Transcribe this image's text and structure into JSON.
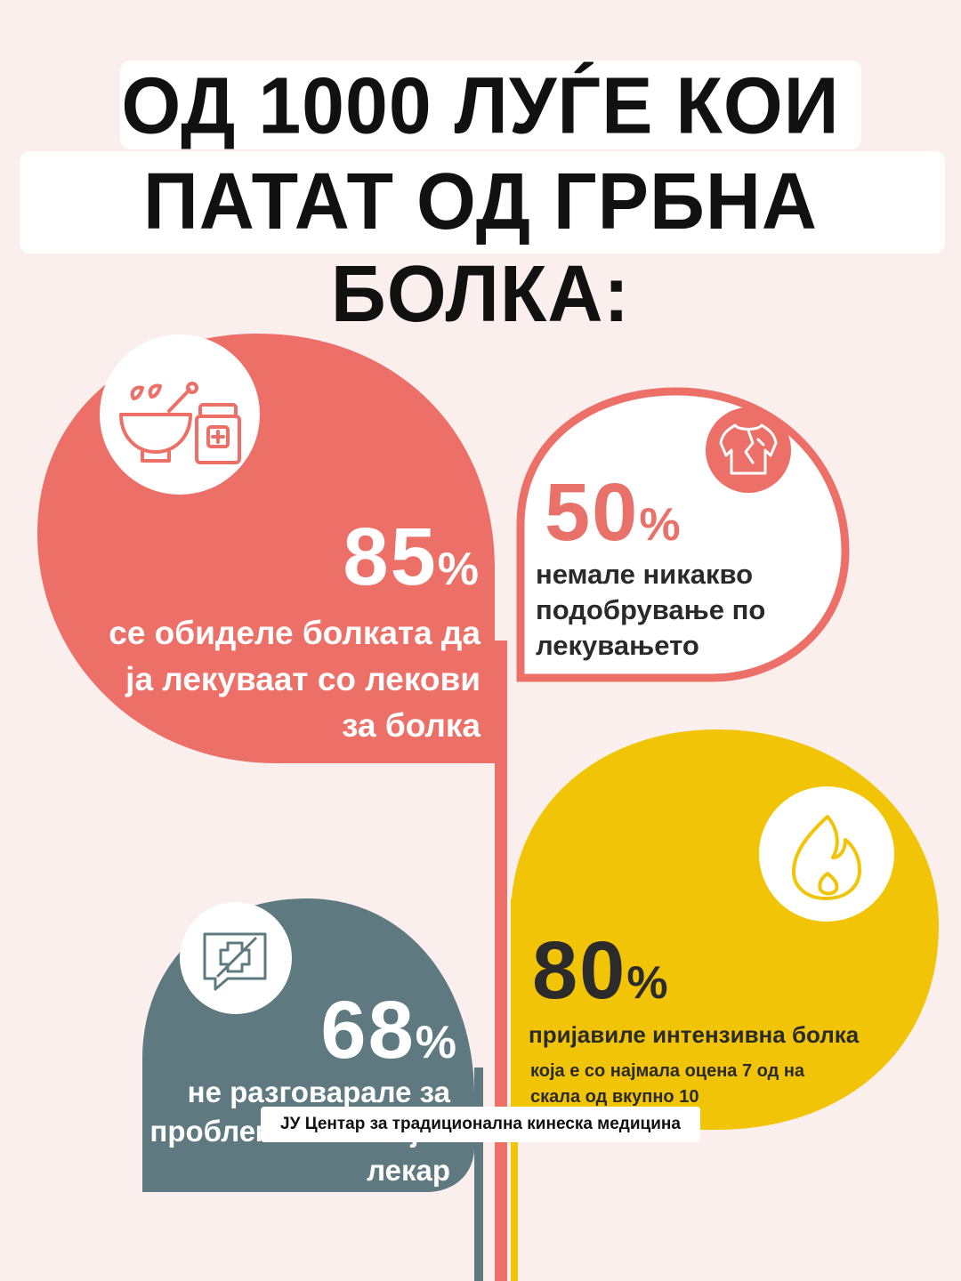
{
  "title": {
    "line1": "ОД 1000 ЛУЃЕ КОИ",
    "line2": "ПАТАТ ОД ГРБНА БОЛКА:"
  },
  "stats": [
    {
      "value": "85",
      "unit": "%",
      "text": "се обиделе болката да ја лекуваат со лекови за болка",
      "icon": "mortar-pestle-medicine-jar-icon",
      "color": "#ec7068"
    },
    {
      "value": "50",
      "unit": "%",
      "text": "немале никакво подобрување по лекувањето",
      "icon": "back-pain-body-icon",
      "color": "#ec7068"
    },
    {
      "value": "68",
      "unit": "%",
      "text": "не разговарале за проблемот со својот лекар",
      "icon": "medical-chat-bubble-icon",
      "color": "#5e7980"
    },
    {
      "value": "80",
      "unit": "%",
      "text": "пријавиле интензивна болка",
      "subtext": "која е со најмала оцена 7 од на скала од вкупно 10",
      "icon": "flame-icon",
      "color": "#f2c407"
    }
  ],
  "footer": "ЈУ Центар за традиционална кинеска медицина"
}
